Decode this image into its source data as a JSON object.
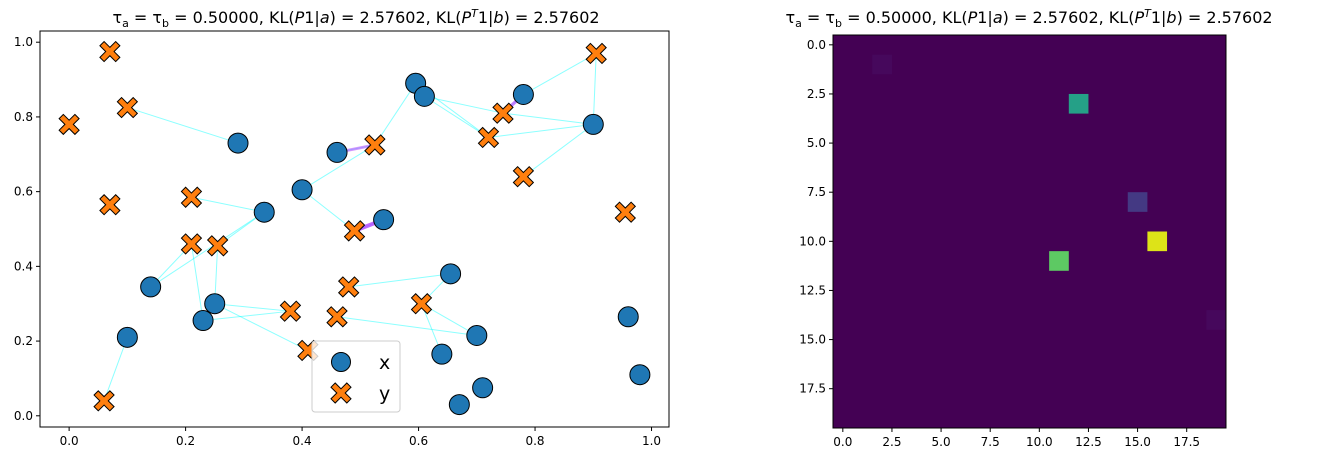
{
  "chart_data": [
    {
      "type": "scatter",
      "title": "τa = τb = 0.50000, KL(P1|a) = 2.57602, KL(PT1|b) = 2.57602",
      "title_parts": {
        "tau_a": "τ",
        "sub_a": "a",
        "eq1": " = ",
        "tau_b": "τ",
        "sub_b": "b",
        "value1": " = 0.50000, KL(",
        "P1": "P",
        "mid1": "1|",
        "a": "a",
        "value2": ") = 2.57602, KL(",
        "P2": "P",
        "sup": "T",
        "mid2": "1|",
        "b": "b",
        "value3": ") = 2.57602"
      },
      "xlim": [
        -0.05,
        1.03
      ],
      "ylim": [
        -0.03,
        1.03
      ],
      "xticks": [
        0.0,
        0.2,
        0.4,
        0.6,
        0.8,
        1.0
      ],
      "xtick_labels": [
        "0.0",
        "0.2",
        "0.4",
        "0.6",
        "0.8",
        "1.0"
      ],
      "yticks": [
        0.0,
        0.2,
        0.4,
        0.6,
        0.8,
        1.0
      ],
      "ytick_labels": [
        "0.0",
        "0.2",
        "0.4",
        "0.6",
        "0.8",
        "1.0"
      ],
      "grid": false,
      "legend_position": "bottom-center",
      "series": [
        {
          "name": "x",
          "marker": "circle",
          "color": "#1f77b4",
          "points": [
            [
              0.1,
              0.21
            ],
            [
              0.14,
              0.345
            ],
            [
              0.23,
              0.255
            ],
            [
              0.25,
              0.3
            ],
            [
              0.29,
              0.73
            ],
            [
              0.335,
              0.545
            ],
            [
              0.4,
              0.605
            ],
            [
              0.46,
              0.705
            ],
            [
              0.54,
              0.525
            ],
            [
              0.595,
              0.89
            ],
            [
              0.61,
              0.855
            ],
            [
              0.64,
              0.165
            ],
            [
              0.655,
              0.38
            ],
            [
              0.67,
              0.03
            ],
            [
              0.7,
              0.215
            ],
            [
              0.71,
              0.075
            ],
            [
              0.78,
              0.86
            ],
            [
              0.9,
              0.78
            ],
            [
              0.96,
              0.265
            ],
            [
              0.98,
              0.11
            ]
          ]
        },
        {
          "name": "y",
          "marker": "X",
          "color": "#ff7f0e",
          "points": [
            [
              0.0,
              0.78
            ],
            [
              0.07,
              0.975
            ],
            [
              0.07,
              0.565
            ],
            [
              0.06,
              0.04
            ],
            [
              0.1,
              0.825
            ],
            [
              0.21,
              0.585
            ],
            [
              0.21,
              0.46
            ],
            [
              0.255,
              0.455
            ],
            [
              0.38,
              0.28
            ],
            [
              0.41,
              0.175
            ],
            [
              0.46,
              0.265
            ],
            [
              0.48,
              0.345
            ],
            [
              0.49,
              0.495
            ],
            [
              0.525,
              0.725
            ],
            [
              0.605,
              0.3
            ],
            [
              0.72,
              0.745
            ],
            [
              0.745,
              0.81
            ],
            [
              0.78,
              0.64
            ],
            [
              0.905,
              0.97
            ],
            [
              0.955,
              0.545
            ]
          ]
        }
      ],
      "links": [
        [
          0.1,
          0.21,
          0.06,
          0.04
        ],
        [
          0.14,
          0.345,
          0.21,
          0.46
        ],
        [
          0.14,
          0.345,
          0.335,
          0.545
        ],
        [
          0.23,
          0.255,
          0.38,
          0.28
        ],
        [
          0.23,
          0.255,
          0.21,
          0.46
        ],
        [
          0.25,
          0.3,
          0.41,
          0.175
        ],
        [
          0.25,
          0.3,
          0.38,
          0.28
        ],
        [
          0.25,
          0.3,
          0.255,
          0.455
        ],
        [
          0.29,
          0.73,
          0.1,
          0.825
        ],
        [
          0.335,
          0.545,
          0.21,
          0.585
        ],
        [
          0.335,
          0.545,
          0.255,
          0.455
        ],
        [
          0.4,
          0.605,
          0.525,
          0.725
        ],
        [
          0.4,
          0.605,
          0.49,
          0.495
        ],
        [
          0.46,
          0.705,
          0.525,
          0.725
        ],
        [
          0.54,
          0.525,
          0.49,
          0.495
        ],
        [
          0.595,
          0.89,
          0.525,
          0.725
        ],
        [
          0.595,
          0.89,
          0.72,
          0.745
        ],
        [
          0.61,
          0.855,
          0.745,
          0.81
        ],
        [
          0.61,
          0.855,
          0.72,
          0.745
        ],
        [
          0.64,
          0.165,
          0.605,
          0.3
        ],
        [
          0.655,
          0.38,
          0.605,
          0.3
        ],
        [
          0.655,
          0.38,
          0.48,
          0.345
        ],
        [
          0.7,
          0.215,
          0.605,
          0.3
        ],
        [
          0.7,
          0.215,
          0.46,
          0.265
        ],
        [
          0.78,
          0.86,
          0.745,
          0.81
        ],
        [
          0.78,
          0.86,
          0.905,
          0.97
        ],
        [
          0.9,
          0.78,
          0.905,
          0.97
        ],
        [
          0.9,
          0.78,
          0.78,
          0.64
        ],
        [
          0.9,
          0.78,
          0.72,
          0.745
        ],
        [
          0.9,
          0.78,
          0.745,
          0.81
        ]
      ],
      "strong_links": [
        [
          0.46,
          0.705,
          0.525,
          0.725,
          0.45
        ],
        [
          0.54,
          0.525,
          0.49,
          0.495,
          1.0
        ],
        [
          0.78,
          0.86,
          0.745,
          0.81,
          0.7
        ]
      ]
    },
    {
      "type": "heatmap",
      "title": "τa = τb = 0.50000, KL(P1|a) = 2.57602, KL(PT1|b) = 2.57602",
      "rows": 20,
      "cols": 20,
      "background_color": "#440154",
      "cells": [
        {
          "row": 1,
          "col": 2,
          "color": "#46085c"
        },
        {
          "row": 3,
          "col": 12,
          "color": "#25a087"
        },
        {
          "row": 8,
          "col": 15,
          "color": "#443983"
        },
        {
          "row": 10,
          "col": 16,
          "color": "#dde318"
        },
        {
          "row": 11,
          "col": 11,
          "color": "#5dc963"
        },
        {
          "row": 14,
          "col": 19,
          "color": "#46085c"
        }
      ],
      "xticks": [
        0.0,
        2.5,
        5.0,
        7.5,
        10.0,
        12.5,
        15.0,
        17.5
      ],
      "xtick_labels": [
        "0.0",
        "2.5",
        "5.0",
        "7.5",
        "10.0",
        "12.5",
        "15.0",
        "17.5"
      ],
      "yticks": [
        0.0,
        2.5,
        5.0,
        7.5,
        10.0,
        12.5,
        15.0,
        17.5
      ],
      "ytick_labels": [
        "0.0",
        "2.5",
        "5.0",
        "7.5",
        "10.0",
        "12.5",
        "15.0",
        "17.5"
      ]
    }
  ]
}
